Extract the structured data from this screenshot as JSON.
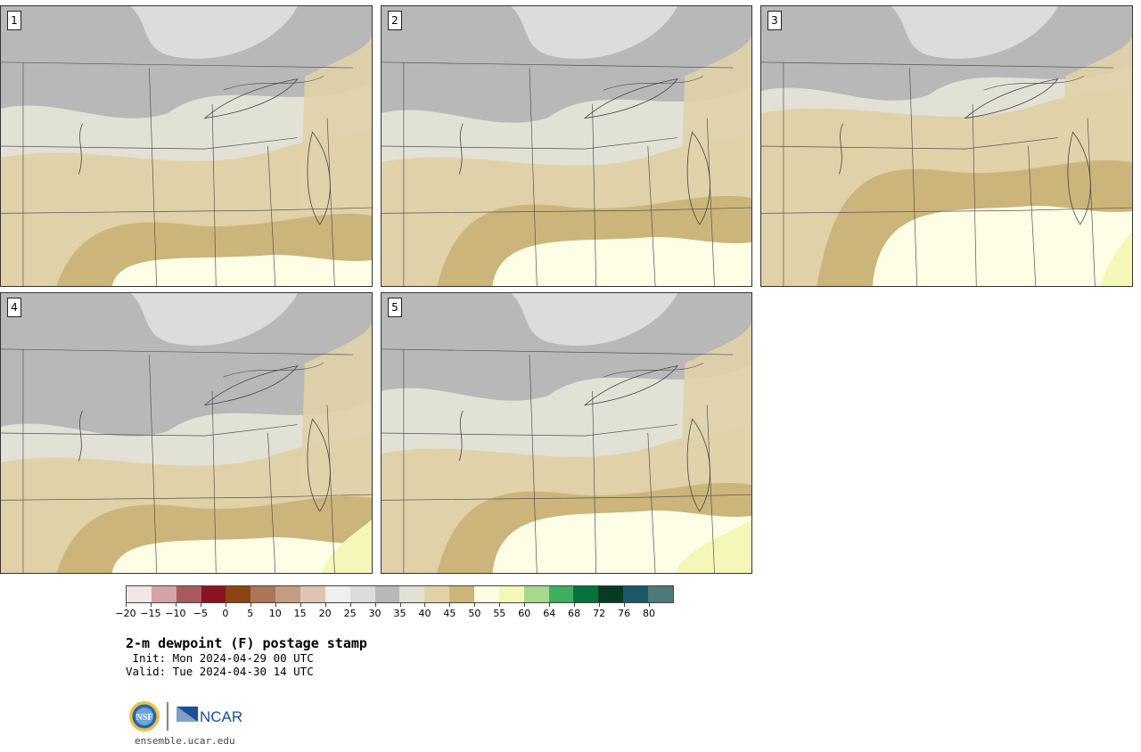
{
  "panels": [
    {
      "label": "1"
    },
    {
      "label": "2"
    },
    {
      "label": "3"
    },
    {
      "label": "4"
    },
    {
      "label": "5"
    }
  ],
  "colorbar": {
    "colors": [
      "#f3e6e6",
      "#d3a3a6",
      "#a85a5f",
      "#8b1322",
      "#8b4513",
      "#a9765a",
      "#c49c84",
      "#dfc3b3",
      "#efefef",
      "#dcdcdc",
      "#b8b8b8",
      "#e2e1d6",
      "#e0d1a8",
      "#cbb57b",
      "#fefde6",
      "#f5f7b8",
      "#a6d98e",
      "#41ad5f",
      "#08723c",
      "#093a22",
      "#1e5768",
      "#4e7a7a"
    ],
    "tick_labels": [
      "−20",
      "−15",
      "−10",
      "−5",
      "0",
      "5",
      "10",
      "15",
      "20",
      "25",
      "30",
      "35",
      "40",
      "45",
      "50",
      "55",
      "60",
      "64",
      "68",
      "72",
      "76",
      "80"
    ]
  },
  "title": "2-m dewpoint (F) postage stamp",
  "init_line": " Init: Mon 2024-04-29 00 UTC",
  "valid_line": "Valid: Tue 2024-04-30 14 UTC",
  "logo": {
    "nsf": "NSF",
    "ncar": "NCAR"
  },
  "site": "ensemble.ucar.edu"
}
